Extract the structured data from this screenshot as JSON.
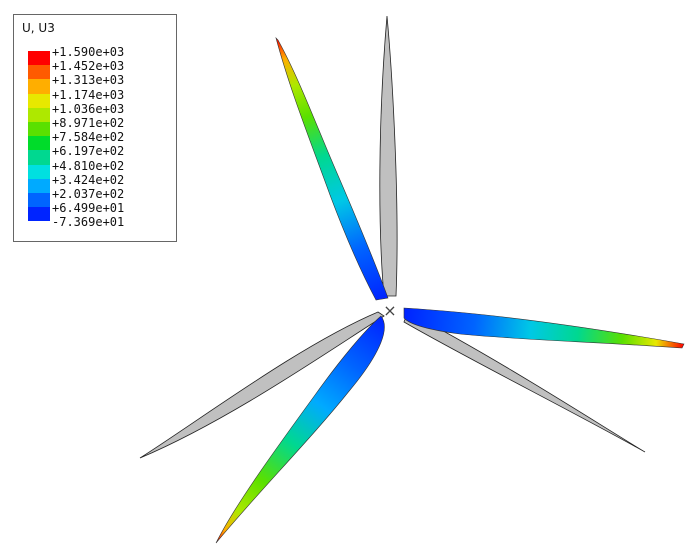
{
  "legend": {
    "title": "U, U3",
    "ticks": [
      "+1.590e+03",
      "+1.452e+03",
      "+1.313e+03",
      "+1.174e+03",
      "+1.036e+03",
      "+8.971e+02",
      "+7.584e+02",
      "+6.197e+02",
      "+4.810e+02",
      "+3.424e+02",
      "+2.037e+02",
      "+6.499e+01",
      "-7.369e+01"
    ],
    "colors": [
      "#ff0000",
      "#ff5a00",
      "#ffae00",
      "#e8e800",
      "#aee800",
      "#5ae000",
      "#00dc2a",
      "#00d890",
      "#00e0e0",
      "#00aaff",
      "#0064ff",
      "#0024ff"
    ]
  },
  "diagram": {
    "undeformed_color": "#c0c0c0",
    "outline_color": "#222222",
    "hub_symbol": "×"
  }
}
